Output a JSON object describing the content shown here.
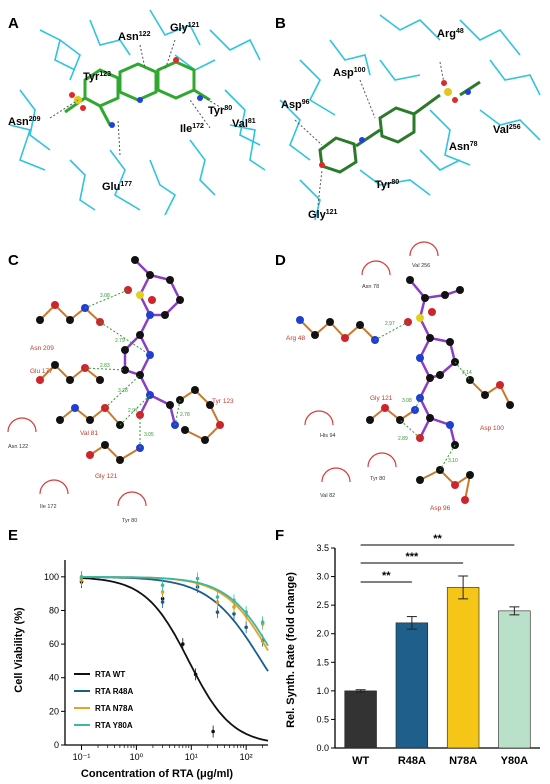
{
  "panels": {
    "A": {
      "letter": "A",
      "residues": [
        {
          "name": "Asn",
          "num": "122"
        },
        {
          "name": "Gly",
          "num": "121"
        },
        {
          "name": "Tyr",
          "num": "123"
        },
        {
          "name": "Asn",
          "num": "209"
        },
        {
          "name": "Tyr",
          "num": "80"
        },
        {
          "name": "Val",
          "num": "81"
        },
        {
          "name": "Ile",
          "num": "172"
        },
        {
          "name": "Glu",
          "num": "177"
        }
      ]
    },
    "B": {
      "letter": "B",
      "residues": [
        {
          "name": "Arg",
          "num": "48"
        },
        {
          "name": "Asp",
          "num": "100"
        },
        {
          "name": "Asp",
          "num": "96"
        },
        {
          "name": "Val",
          "num": "256"
        },
        {
          "name": "Asn",
          "num": "78"
        },
        {
          "name": "Tyr",
          "num": "80"
        },
        {
          "name": "Gly",
          "num": "121"
        }
      ]
    },
    "C": {
      "letter": "C",
      "hbond_residues": [
        "Asn 209",
        "Glu 177",
        "Val 81",
        "Gly 121",
        "Tyr 123"
      ],
      "hydrophobic_residues": [
        "Asn 122",
        "Ile 172",
        "Tyr 80"
      ],
      "hbond_distances": [
        "3.08",
        "2.79",
        "2.83",
        "3.28",
        "2.97",
        "3.05",
        "2.78"
      ]
    },
    "D": {
      "letter": "D",
      "hbond_residues": [
        "Arg 48",
        "Gly 121",
        "Asp 100",
        "Asp 96"
      ],
      "hydrophobic_residues": [
        "Val 256",
        "Asn 78",
        "His 94",
        "Tyr 80",
        "Val 82"
      ],
      "hbond_distances": [
        "2.97",
        "3.14",
        "3.08",
        "2.89",
        "3.10"
      ]
    },
    "E": {
      "letter": "E",
      "ylabel": "Cell Viability (%)",
      "xlabel": "Concentration of RTA (μg/ml)",
      "yticks": [
        "0",
        "20",
        "40",
        "60",
        "80",
        "100"
      ],
      "xticks": [
        "10⁻¹",
        "10⁰",
        "10¹",
        "10²"
      ],
      "legend": [
        {
          "label": "RTA WT",
          "color": "#111111"
        },
        {
          "label": "RTA R48A",
          "color": "#1a5c8e"
        },
        {
          "label": "RTA  N78A",
          "color": "#e8a21c"
        },
        {
          "label": "RTA  Y80A",
          "color": "#3cb8a0"
        }
      ]
    },
    "F": {
      "letter": "F",
      "ylabel": "Rel. Synth. Rate (fold change)",
      "yticks": [
        "0.0",
        "0.5",
        "1.0",
        "1.5",
        "2.0",
        "2.5",
        "3.0",
        "3.5"
      ],
      "significance": [
        {
          "label": "**",
          "from": "WT",
          "to": "R48A"
        },
        {
          "label": "***",
          "from": "WT",
          "to": "N78A"
        },
        {
          "label": "**",
          "from": "WT",
          "to": "Y80A"
        }
      ]
    }
  },
  "chart_data": [
    {
      "type": "line",
      "panel": "E",
      "xlabel": "Concentration of RTA (μg/ml)",
      "ylabel": "Cell Viability (%)",
      "xscale": "log",
      "xlim": [
        0.05,
        250
      ],
      "ylim": [
        0,
        110
      ],
      "legend_position": "bottom-left",
      "series": [
        {
          "name": "RTA WT",
          "color": "#111111",
          "x": [
            0.1,
            3,
            7,
            12,
            25
          ],
          "y": [
            97,
            87,
            60,
            42,
            8
          ],
          "fit_ic50": 9,
          "fit_top": 100,
          "fit_hill": 1.1
        },
        {
          "name": "RTA R48A",
          "color": "#1a5c8e",
          "x": [
            0.1,
            3,
            13,
            30,
            60,
            100,
            200
          ],
          "y": [
            99,
            85,
            94,
            79,
            78,
            70,
            62
          ],
          "fit_ic50": 190,
          "fit_top": 100,
          "fit_hill": 0.9
        },
        {
          "name": "RTA  N78A",
          "color": "#e8a21c",
          "x": [
            0.1,
            3,
            13,
            30,
            60,
            100,
            200
          ],
          "y": [
            98,
            91,
            96,
            85,
            82,
            77,
            72
          ],
          "fit_ic50": 320,
          "fit_top": 100,
          "fit_hill": 1.0
        },
        {
          "name": "RTA  Y80A",
          "color": "#3cb8a0",
          "x": [
            0.1,
            3,
            13,
            30,
            60,
            100,
            200
          ],
          "y": [
            100,
            95,
            99,
            88,
            86,
            79,
            73
          ],
          "fit_ic50": 360,
          "fit_top": 100,
          "fit_hill": 1.0
        }
      ]
    },
    {
      "type": "bar",
      "panel": "F",
      "ylabel": "Rel. Synth. Rate (fold change)",
      "ylim": [
        0,
        3.5
      ],
      "categories": [
        "WT",
        "R48A",
        "N78A",
        "Y80A"
      ],
      "values": [
        1.0,
        2.19,
        2.81,
        2.4
      ],
      "errors": [
        0.02,
        0.11,
        0.2,
        0.07
      ],
      "colors": [
        "#333333",
        "#1f5f8b",
        "#f5c518",
        "#b9e0c9"
      ]
    }
  ]
}
